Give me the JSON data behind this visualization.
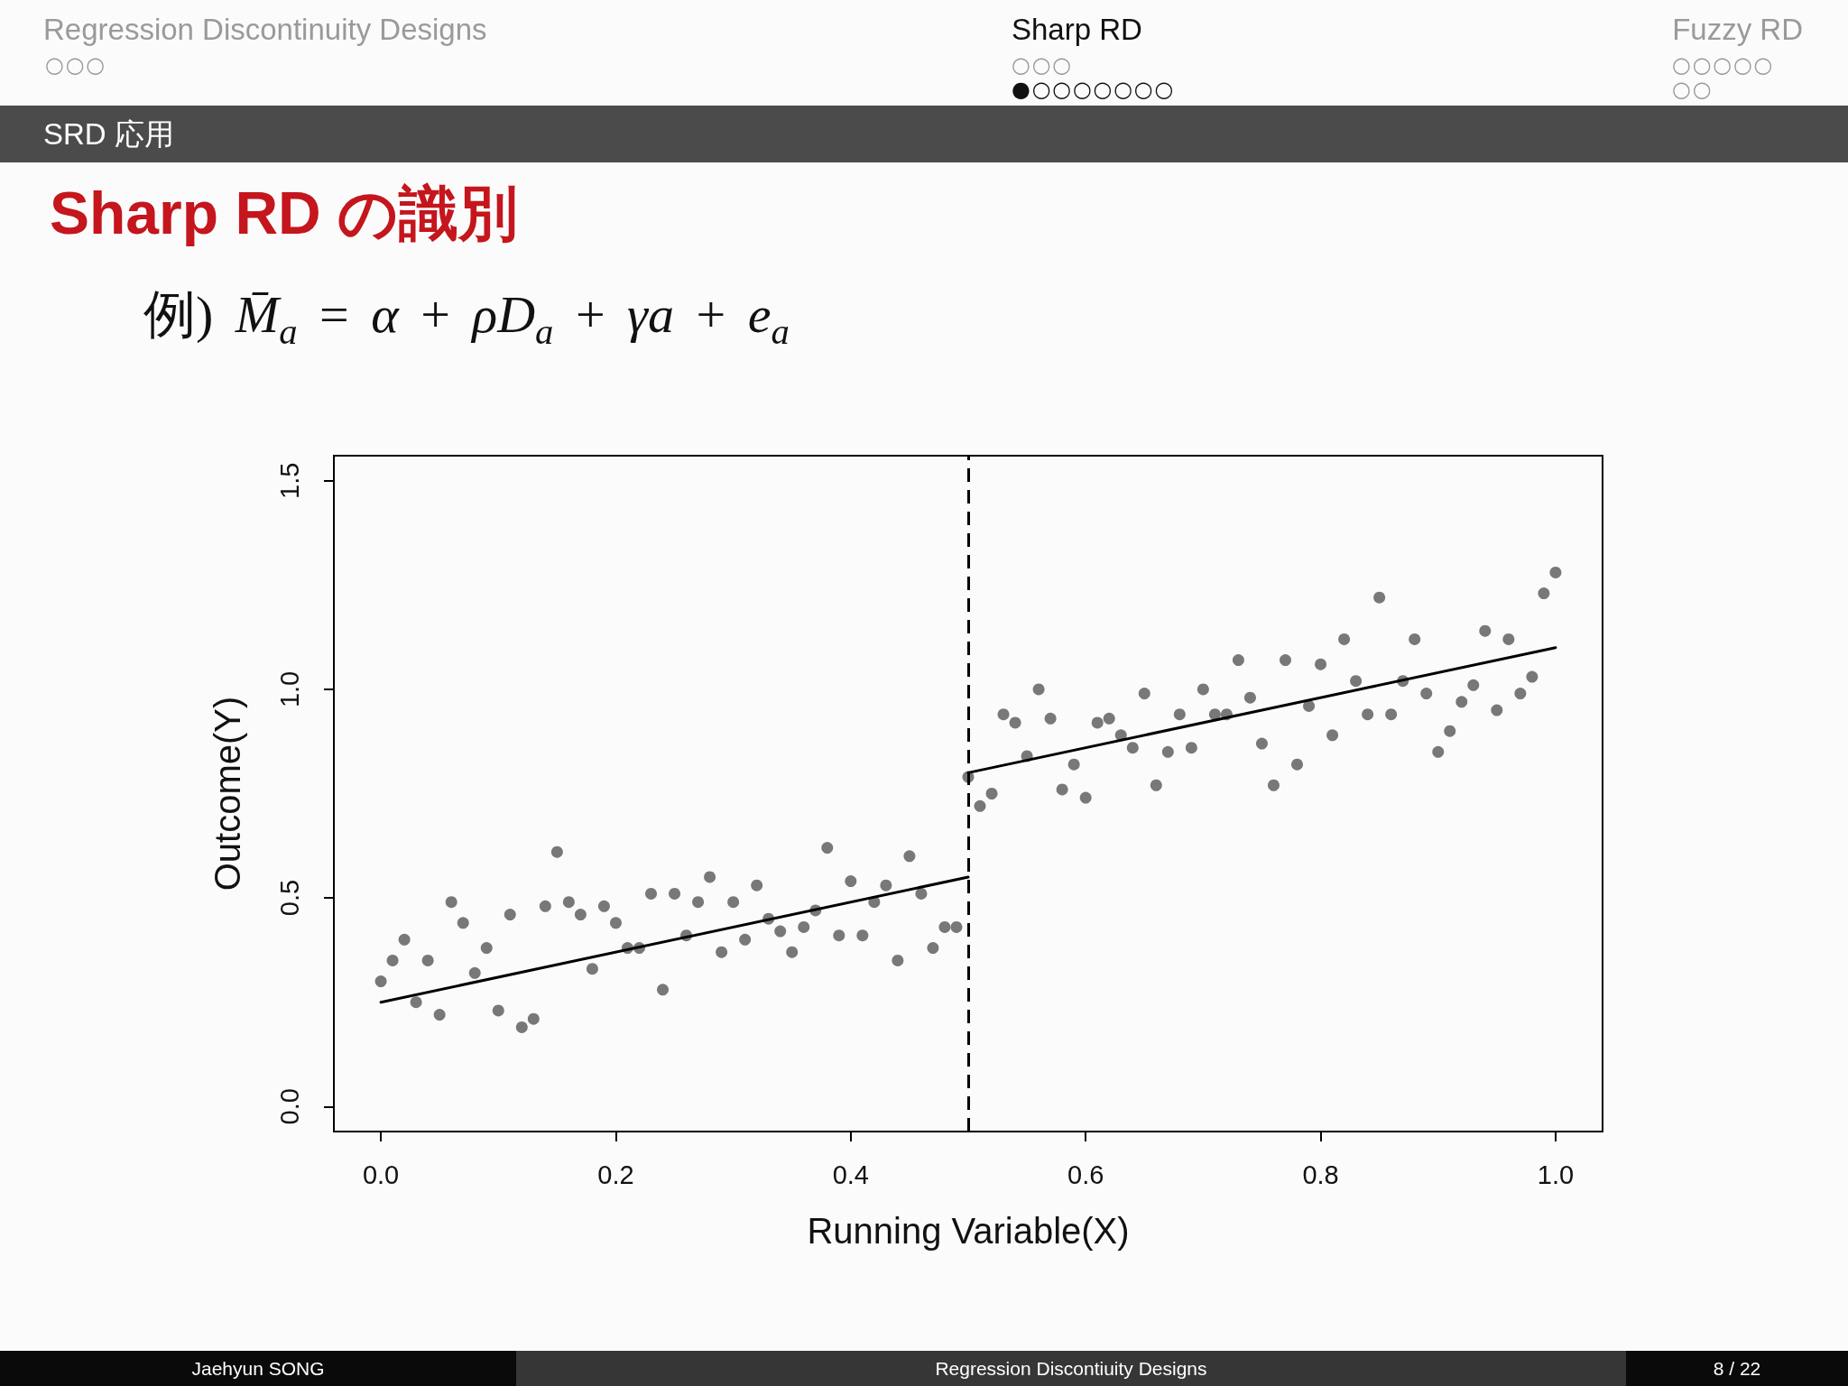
{
  "chart_data": {
    "type": "scatter",
    "title": "Sharp RD の識別",
    "subtitle": "例) M̄$_{a}$ = α + ρD$_{a}$ + γa + e$_{a}$",
    "xlabel": "Running Variable(X)",
    "ylabel": "Outcome(Y)",
    "annotations": [
      "Regression Discontinuity Designs",
      "○○○",
      "Sharp RD",
      "○○○",
      "●○○○○○○○",
      "Fuzzy RD",
      "○○○○○",
      "○○",
      "SRD 応用",
      "Jaehyun SONG",
      "Regression Discontiuity Designs",
      "8 / 22"
    ],
    "x": [
      0,
      0.01,
      0.02,
      0.03,
      0.04,
      0.05,
      0.06,
      0.07,
      0.08,
      0.09,
      0.1,
      0.11,
      0.12,
      0.13,
      0.14,
      0.15,
      0.16,
      0.17,
      0.18,
      0.19,
      0.2,
      0.21,
      0.22,
      0.23,
      0.24,
      0.25,
      0.26,
      0.27,
      0.28,
      0.29,
      0.3,
      0.31,
      0.32,
      0.33,
      0.34,
      0.35,
      0.36,
      0.37,
      0.38,
      0.39,
      0.4,
      0.41,
      0.42,
      0.43,
      0.44,
      0.45,
      0.46,
      0.47,
      0.48,
      0.49,
      0.5,
      0.51,
      0.52,
      0.53,
      0.54,
      0.55,
      0.56,
      0.57,
      0.58,
      0.59,
      0.6,
      0.61,
      0.62,
      0.63,
      0.64,
      0.65,
      0.66,
      0.67,
      0.68,
      0.69,
      0.7,
      0.71,
      0.72,
      0.73,
      0.74,
      0.75,
      0.76,
      0.77,
      0.78,
      0.79,
      0.8,
      0.81,
      0.82,
      0.83,
      0.84,
      0.85,
      0.86,
      0.87,
      0.88,
      0.89,
      0.9,
      0.91,
      0.92,
      0.93,
      0.94,
      0.95,
      0.96,
      0.97,
      0.98,
      0.99,
      1
    ],
    "series": [
      {
        "color": "#787878",
        "values": [
          0.3,
          0.35,
          0.4,
          0.25,
          0.35,
          0.22,
          0.49,
          0.44,
          0.32,
          0.38,
          0.23,
          0.46,
          0.19,
          0.21,
          0.48,
          0.61,
          0.49,
          0.46,
          0.33,
          0.48,
          0.44,
          0.38,
          0.38,
          0.51,
          0.28,
          0.51,
          0.41,
          0.49,
          0.55,
          0.37,
          0.49,
          0.4,
          0.53,
          0.45,
          0.42,
          0.37,
          0.43,
          0.47,
          0.62,
          0.41,
          0.54,
          0.41,
          0.49,
          0.53,
          0.35,
          0.6,
          0.51,
          0.38,
          0.43,
          0.43,
          0.79,
          0.72,
          0.75,
          0.94,
          0.92,
          0.84,
          1.0,
          0.93,
          0.76,
          0.82,
          0.74,
          0.92,
          0.93,
          0.89,
          0.86,
          0.99,
          0.77,
          0.85,
          0.94,
          0.86,
          1.0,
          0.94,
          0.94,
          1.07,
          0.98,
          0.87,
          0.77,
          1.07,
          0.82,
          0.96,
          1.06,
          0.89,
          1.12,
          1.02,
          0.94,
          1.22,
          0.94,
          1.02,
          1.12,
          0.99,
          0.85,
          0.9,
          0.97,
          1.01,
          1.14,
          0.95,
          1.12,
          0.99,
          1.03,
          1.23,
          1.28
        ]
      },
      {
        "type": "line",
        "marker": "none",
        "color": "#000000",
        "x": [
          0,
          0.5
        ],
        "values": [
          0.25,
          0.55
        ]
      },
      {
        "type": "line",
        "marker": "none",
        "color": "#000000",
        "x": [
          0.5,
          1
        ],
        "values": [
          0.8,
          1.1
        ]
      }
    ],
    "ref_lines": [
      {
        "axis": "x",
        "value": 0.5,
        "color": "#000000",
        "line_style": "dashed"
      }
    ],
    "marker": "circle",
    "xlim": [
      -0.04,
      1.04
    ],
    "xticks": [
      {
        "value": 0,
        "label": "0.0"
      },
      0.2,
      0.4,
      0.6,
      0.8,
      {
        "value": 1,
        "label": "1.0"
      }
    ],
    "ylim": [
      -0.06,
      1.56
    ],
    "yticks": [
      {
        "value": 0,
        "label": "0.0"
      },
      0.5,
      {
        "value": 1,
        "label": "1.0"
      },
      1.5
    ]
  }
}
